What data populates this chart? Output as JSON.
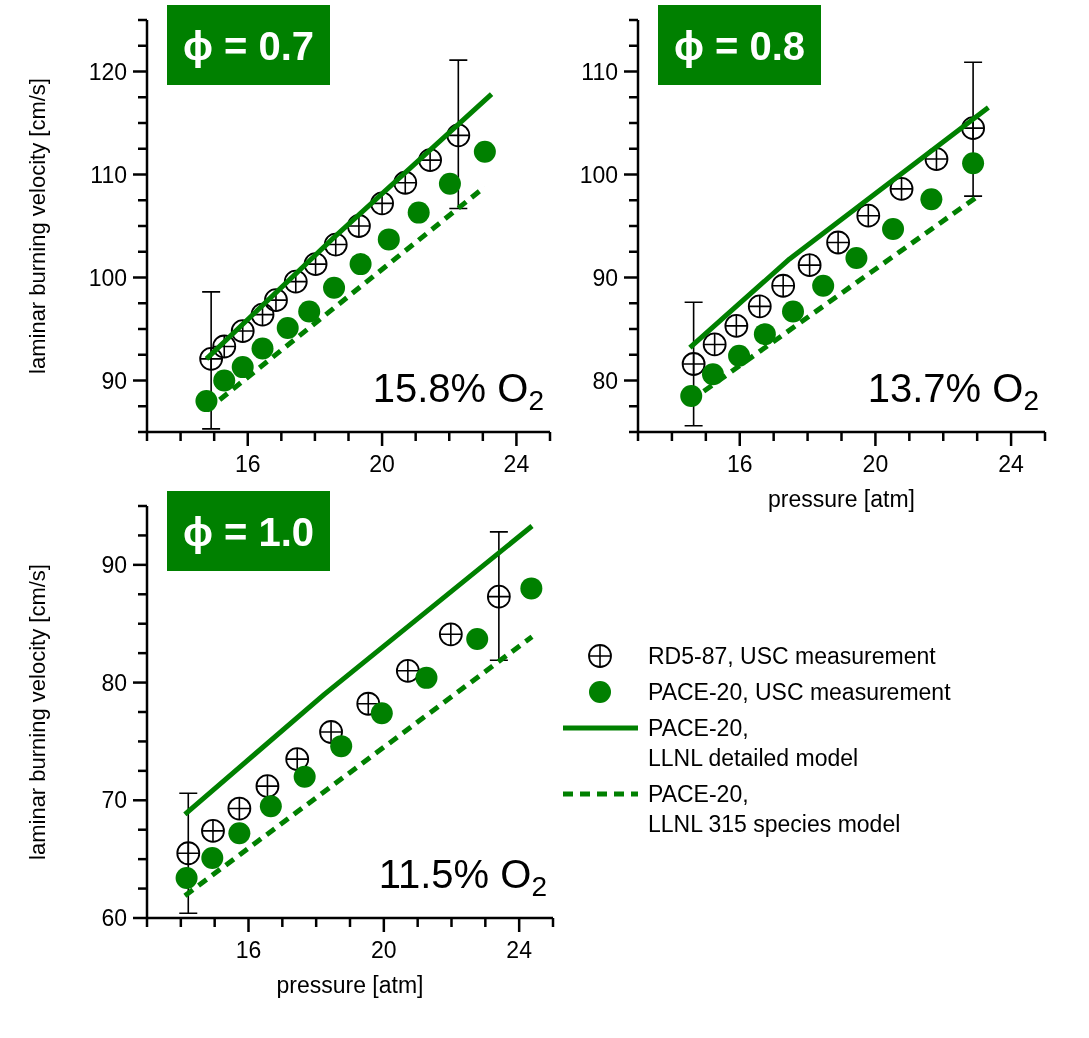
{
  "chart_data": [
    {
      "type": "scatter",
      "title": "ϕ = 0.7",
      "ylabel": "laminar burning velocity [cm/s]",
      "annotations": [
        "15.8% O$_{2}$"
      ],
      "xlim": [
        13,
        25
      ],
      "ylim": [
        85,
        125
      ],
      "xticks": [
        {
          "value": 13,
          "label": null
        },
        {
          "value": 14,
          "label": null
        },
        {
          "value": 15,
          "label": null
        },
        16,
        {
          "value": 17,
          "label": null
        },
        {
          "value": 18,
          "label": null
        },
        {
          "value": 19,
          "label": null
        },
        20,
        {
          "value": 21,
          "label": null
        },
        {
          "value": 22,
          "label": null
        },
        {
          "value": 23,
          "label": null
        },
        24,
        {
          "value": 25,
          "label": null
        }
      ],
      "yticks": [
        {
          "value": 85,
          "label": null
        },
        {
          "value": 87.5,
          "label": null
        },
        90,
        {
          "value": 92.5,
          "label": null
        },
        {
          "value": 95,
          "label": null
        },
        {
          "value": 97.5,
          "label": null
        },
        100,
        {
          "value": 102.5,
          "label": null
        },
        {
          "value": 105,
          "label": null
        },
        {
          "value": 107.5,
          "label": null
        },
        110,
        {
          "value": 112.5,
          "label": null
        },
        {
          "value": 115,
          "label": null
        },
        {
          "value": 117.5,
          "label": null
        },
        120,
        {
          "value": 122.5,
          "label": null
        },
        {
          "value": 125,
          "label": null
        }
      ],
      "series": [
        {
          "type": "scatter",
          "marker": "circle",
          "color": "#000000",
          "x": [
            14.91,
            15.3,
            15.85,
            16.44,
            16.84,
            17.43,
            18.02,
            18.62,
            19.31,
            20.0,
            20.69,
            21.43,
            22.27
          ],
          "values": [
            92.1,
            93.3,
            94.8,
            96.4,
            97.8,
            99.6,
            101.3,
            103.2,
            105.0,
            107.2,
            109.2,
            111.4,
            113.8
          ],
          "errors": [
            [
              85.3,
              98.6
            ],
            null,
            null,
            null,
            null,
            null,
            null,
            null,
            null,
            null,
            null,
            null,
            [
              106.7,
              121.1
            ]
          ]
        },
        {
          "type": "scatter",
          "marker": "circle",
          "color": "#008000",
          "x": [
            14.77,
            15.3,
            15.85,
            16.44,
            17.19,
            17.83,
            18.57,
            19.36,
            20.2,
            21.09,
            22.02,
            23.06
          ],
          "values": [
            88.0,
            90.0,
            91.3,
            93.1,
            95.1,
            96.7,
            99.0,
            101.3,
            103.7,
            106.3,
            109.1,
            112.2
          ]
        },
        {
          "type": "line",
          "line_style": "solid",
          "color": "#008000",
          "x": [
            14.77,
            18.57,
            23.26
          ],
          "values": [
            92.1,
            103.9,
            117.8
          ]
        },
        {
          "type": "line",
          "line_style": "dashed",
          "color": "#008000",
          "x": [
            14.77,
            23.06
          ],
          "values": [
            87.1,
            108.8
          ]
        }
      ]
    },
    {
      "type": "scatter",
      "title": "ϕ = 0.8",
      "xlabel": "pressure [atm]",
      "annotations": [
        "13.7% O$_{2}$"
      ],
      "xlim": [
        13,
        25
      ],
      "ylim": [
        75,
        115
      ],
      "xticks": [
        {
          "value": 13,
          "label": null
        },
        {
          "value": 14,
          "label": null
        },
        {
          "value": 15,
          "label": null
        },
        16,
        {
          "value": 17,
          "label": null
        },
        {
          "value": 18,
          "label": null
        },
        {
          "value": 19,
          "label": null
        },
        20,
        {
          "value": 21,
          "label": null
        },
        {
          "value": 22,
          "label": null
        },
        {
          "value": 23,
          "label": null
        },
        24,
        {
          "value": 25,
          "label": null
        }
      ],
      "yticks": [
        {
          "value": 75,
          "label": null
        },
        {
          "value": 77.5,
          "label": null
        },
        80,
        {
          "value": 82.5,
          "label": null
        },
        {
          "value": 85,
          "label": null
        },
        {
          "value": 87.5,
          "label": null
        },
        90,
        {
          "value": 92.5,
          "label": null
        },
        {
          "value": 95,
          "label": null
        },
        {
          "value": 97.5,
          "label": null
        },
        100,
        {
          "value": 102.5,
          "label": null
        },
        {
          "value": 105,
          "label": null
        },
        {
          "value": 107.5,
          "label": null
        },
        110,
        {
          "value": 112.5,
          "label": null
        },
        {
          "value": 115,
          "label": null
        }
      ],
      "series": [
        {
          "type": "scatter",
          "marker": "circle",
          "color": "#000000",
          "x": [
            14.64,
            15.26,
            15.9,
            16.59,
            17.28,
            18.06,
            18.9,
            19.79,
            20.77,
            21.8,
            22.88
          ],
          "values": [
            81.6,
            83.5,
            85.3,
            87.2,
            89.2,
            91.2,
            93.4,
            96.0,
            98.6,
            101.5,
            104.5
          ],
          "errors": [
            [
              75.6,
              87.6
            ],
            null,
            null,
            null,
            null,
            null,
            null,
            null,
            null,
            null,
            [
              97.9,
              110.9
            ]
          ]
        },
        {
          "type": "scatter",
          "marker": "circle",
          "color": "#008000",
          "x": [
            14.57,
            15.21,
            15.98,
            16.74,
            17.57,
            18.46,
            19.44,
            20.52,
            21.65,
            22.88
          ],
          "values": [
            78.5,
            80.6,
            82.4,
            84.5,
            86.7,
            89.2,
            91.9,
            94.7,
            97.6,
            101.1
          ]
        },
        {
          "type": "line",
          "line_style": "solid",
          "color": "#008000",
          "x": [
            14.53,
            17.47,
            23.33
          ],
          "values": [
            83.2,
            91.8,
            106.5
          ]
        },
        {
          "type": "line",
          "line_style": "dashed",
          "color": "#008000",
          "x": [
            14.53,
            22.98
          ],
          "values": [
            78.0,
            97.8
          ]
        }
      ]
    },
    {
      "type": "scatter",
      "title": "ϕ = 1.0",
      "xlabel": "pressure [atm]",
      "ylabel": "laminar burning velocity [cm/s]",
      "annotations": [
        "11.5% O$_{2}$"
      ],
      "legend": "right",
      "xlim": [
        13,
        25
      ],
      "ylim": [
        60,
        95
      ],
      "xticks": [
        {
          "value": 13,
          "label": null
        },
        {
          "value": 14,
          "label": null
        },
        {
          "value": 15,
          "label": null
        },
        16,
        {
          "value": 17,
          "label": null
        },
        {
          "value": 18,
          "label": null
        },
        {
          "value": 19,
          "label": null
        },
        20,
        {
          "value": 21,
          "label": null
        },
        {
          "value": 22,
          "label": null
        },
        {
          "value": 23,
          "label": null
        },
        24,
        {
          "value": 25,
          "label": null
        }
      ],
      "yticks": [
        60,
        {
          "value": 62.5,
          "label": null
        },
        {
          "value": 65,
          "label": null
        },
        {
          "value": 67.5,
          "label": null
        },
        70,
        {
          "value": 72.5,
          "label": null
        },
        {
          "value": 75,
          "label": null
        },
        {
          "value": 77.5,
          "label": null
        },
        80,
        {
          "value": 82.5,
          "label": null
        },
        {
          "value": 85,
          "label": null
        },
        {
          "value": 87.5,
          "label": null
        },
        90,
        {
          "value": 92.5,
          "label": null
        },
        {
          "value": 95,
          "label": null
        }
      ],
      "series": [
        {
          "type": "scatter",
          "name": "RD5-87, USC measurement",
          "marker": "circle",
          "color": "#000000",
          "x": [
            14.22,
            14.95,
            15.73,
            16.56,
            17.44,
            18.44,
            19.54,
            20.71,
            21.98,
            23.4
          ],
          "values": [
            65.5,
            67.4,
            69.3,
            71.2,
            73.5,
            75.8,
            78.2,
            81.0,
            84.1,
            87.3
          ],
          "errors": [
            [
              60.4,
              70.6
            ],
            null,
            null,
            null,
            null,
            null,
            null,
            null,
            null,
            [
              81.9,
              92.8
            ]
          ]
        },
        {
          "type": "scatter",
          "name": "PACE-20, USC measurement",
          "marker": "circle",
          "color": "#008000",
          "x": [
            14.17,
            14.93,
            15.73,
            16.66,
            17.66,
            18.74,
            19.94,
            21.26,
            22.76,
            24.36
          ],
          "values": [
            63.4,
            65.1,
            67.2,
            69.5,
            72.0,
            74.6,
            77.4,
            80.4,
            83.7,
            88.0
          ]
        },
        {
          "type": "line",
          "name": "PACE-20,\nLLNL detailed model",
          "line_style": "solid",
          "color": "#008000",
          "x": [
            14.12,
            18.24,
            24.38
          ],
          "values": [
            68.8,
            79.0,
            93.3
          ]
        },
        {
          "type": "line",
          "name": "PACE-20,\nLLNL 315 species model",
          "line_style": "dashed",
          "color": "#008000",
          "x": [
            14.12,
            24.38
          ],
          "values": [
            61.9,
            83.9
          ]
        }
      ]
    }
  ]
}
